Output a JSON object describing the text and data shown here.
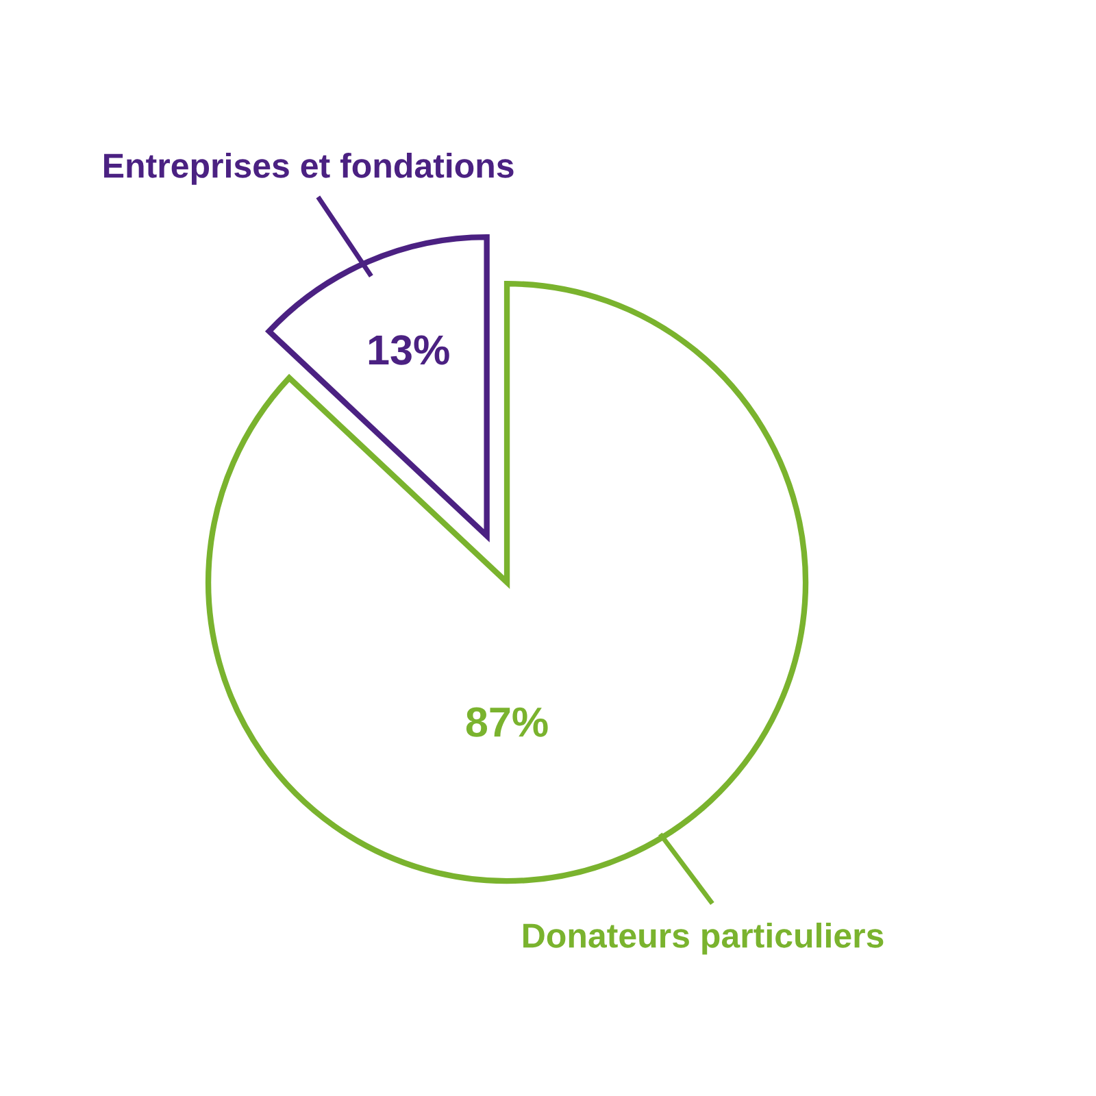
{
  "chart_data": {
    "type": "pie",
    "categories": [
      "Donateurs particuliers",
      "Entreprises et fondations"
    ],
    "values": [
      87,
      13
    ],
    "colors": [
      "#7ab32e",
      "#4b2182"
    ],
    "value_labels": [
      "87%",
      "13%"
    ],
    "legend": false
  }
}
